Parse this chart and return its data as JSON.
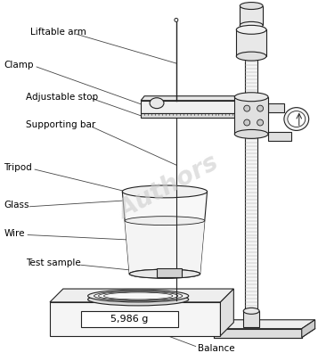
{
  "background_color": "#ffffff",
  "line_color": "#222222",
  "label_color": "#000000",
  "watermark_color": "#cccccc",
  "labels": {
    "liftable_arm": "Liftable arm",
    "clamp": "Clamp",
    "adjustable_stop": "Adjustable stop",
    "supporting_bar": "Supporting bar",
    "tripod": "Tripod",
    "glass": "Glass",
    "wire": "Wire",
    "test_sample": "Test sample",
    "balance": "Balance",
    "weight": "5,986 g"
  },
  "figsize": [
    3.57,
    4.05
  ],
  "dpi": 100
}
